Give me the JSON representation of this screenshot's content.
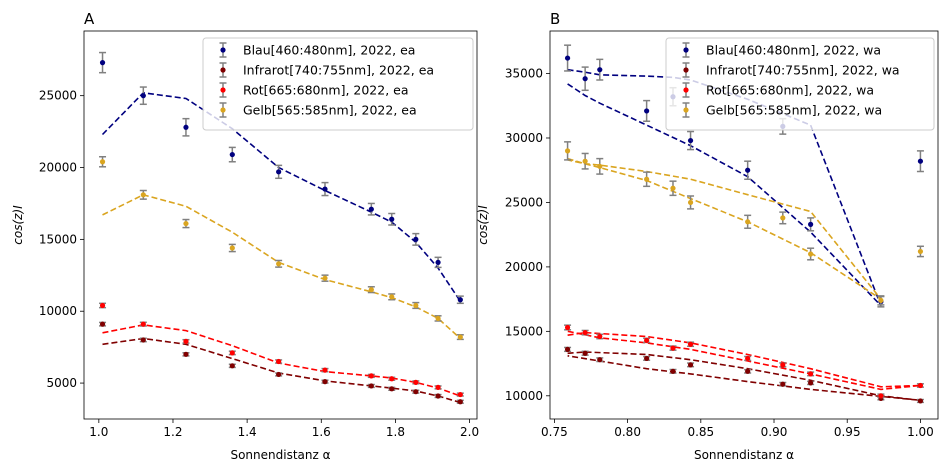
{
  "chart_data": [
    {
      "type": "scatter",
      "title": "A",
      "xlabel": "Sonnendistanz α",
      "ylabel": "cos(z)I",
      "xlim": [
        0.96,
        2.02
      ],
      "ylim": [
        2500,
        29500
      ],
      "xticks": [
        1.0,
        1.2,
        1.4,
        1.6,
        1.8,
        2.0
      ],
      "xtick_labels": [
        "1.0",
        "1.2",
        "1.4",
        "1.6",
        "1.8",
        "2.0"
      ],
      "yticks": [
        5000,
        10000,
        15000,
        20000,
        25000
      ],
      "ytick_labels": [
        "5000",
        "10000",
        "15000",
        "20000",
        "25000"
      ],
      "legend_position": "top-right",
      "grid": false,
      "series": [
        {
          "name": "Blau[460:480nm], 2022, ea",
          "color": "#00007f",
          "points": [
            [
              1.01,
              27300,
              700
            ],
            [
              1.12,
              25000,
              600
            ],
            [
              1.235,
              22800,
              600
            ],
            [
              1.36,
              20900,
              500
            ],
            [
              1.485,
              19700,
              450
            ],
            [
              1.61,
              18500,
              450
            ],
            [
              1.735,
              17100,
              400
            ],
            [
              1.79,
              16400,
              400
            ],
            [
              1.855,
              15000,
              400
            ],
            [
              1.915,
              13400,
              350
            ],
            [
              1.975,
              10800,
              250
            ]
          ],
          "fit": [
            [
              1.01,
              22300
            ],
            [
              1.12,
              25200
            ],
            [
              1.235,
              24800
            ],
            [
              1.36,
              22700
            ],
            [
              1.485,
              20000
            ],
            [
              1.61,
              18400
            ],
            [
              1.735,
              16900
            ],
            [
              1.79,
              16200
            ],
            [
              1.855,
              14800
            ],
            [
              1.915,
              13000
            ],
            [
              1.975,
              10700
            ]
          ]
        },
        {
          "name": "Infrarot[740:755nm], 2022, ea",
          "color": "#800000",
          "points": [
            [
              1.01,
              9100,
              120
            ],
            [
              1.12,
              8000,
              120
            ],
            [
              1.235,
              7000,
              110
            ],
            [
              1.36,
              6200,
              110
            ],
            [
              1.485,
              5600,
              100
            ],
            [
              1.61,
              5100,
              100
            ],
            [
              1.735,
              4800,
              100
            ],
            [
              1.79,
              4600,
              100
            ],
            [
              1.855,
              4400,
              100
            ],
            [
              1.915,
              4100,
              100
            ],
            [
              1.975,
              3700,
              100
            ]
          ],
          "fit": [
            [
              1.01,
              7700
            ],
            [
              1.12,
              8100
            ],
            [
              1.235,
              7700
            ],
            [
              1.36,
              6700
            ],
            [
              1.485,
              5700
            ],
            [
              1.61,
              5150
            ],
            [
              1.735,
              4800
            ],
            [
              1.79,
              4650
            ],
            [
              1.855,
              4450
            ],
            [
              1.915,
              4100
            ],
            [
              1.975,
              3650
            ]
          ]
        },
        {
          "name": "Rot[665:680nm], 2022, ea",
          "color": "#ff0000",
          "points": [
            [
              1.01,
              10400,
              150
            ],
            [
              1.12,
              9100,
              130
            ],
            [
              1.235,
              7900,
              120
            ],
            [
              1.36,
              7100,
              120
            ],
            [
              1.485,
              6500,
              110
            ],
            [
              1.61,
              5900,
              110
            ],
            [
              1.735,
              5500,
              100
            ],
            [
              1.79,
              5300,
              100
            ],
            [
              1.855,
              5050,
              100
            ],
            [
              1.915,
              4700,
              100
            ],
            [
              1.975,
              4200,
              100
            ]
          ],
          "fit": [
            [
              1.01,
              8500
            ],
            [
              1.12,
              9050
            ],
            [
              1.235,
              8650
            ],
            [
              1.36,
              7600
            ],
            [
              1.485,
              6400
            ],
            [
              1.61,
              5800
            ],
            [
              1.735,
              5500
            ],
            [
              1.79,
              5350
            ],
            [
              1.855,
              5050
            ],
            [
              1.915,
              4650
            ],
            [
              1.975,
              4100
            ]
          ]
        },
        {
          "name": "Gelb[565:585nm], 2022, ea",
          "color": "#daa520",
          "points": [
            [
              1.01,
              20400,
              350
            ],
            [
              1.12,
              18100,
              300
            ],
            [
              1.235,
              16100,
              280
            ],
            [
              1.36,
              14400,
              250
            ],
            [
              1.485,
              13300,
              230
            ],
            [
              1.61,
              12300,
              210
            ],
            [
              1.735,
              11500,
              200
            ],
            [
              1.79,
              11000,
              200
            ],
            [
              1.855,
              10400,
              200
            ],
            [
              1.915,
              9500,
              180
            ],
            [
              1.975,
              8200,
              160
            ]
          ],
          "fit": [
            [
              1.01,
              16700
            ],
            [
              1.12,
              18100
            ],
            [
              1.235,
              17300
            ],
            [
              1.36,
              15500
            ],
            [
              1.485,
              13400
            ],
            [
              1.61,
              12200
            ],
            [
              1.735,
              11350
            ],
            [
              1.79,
              10950
            ],
            [
              1.855,
              10300
            ],
            [
              1.915,
              9500
            ],
            [
              1.975,
              8100
            ]
          ]
        }
      ]
    },
    {
      "type": "scatter",
      "title": "B",
      "xlabel": "Sonnendistanz α",
      "ylabel": "cos(z)I",
      "xlim": [
        0.747,
        1.012
      ],
      "ylim": [
        8200,
        38300
      ],
      "xticks": [
        0.75,
        0.8,
        0.85,
        0.9,
        0.95,
        1.0
      ],
      "xtick_labels": [
        "0.75",
        "0.80",
        "0.85",
        "0.90",
        "0.95",
        "1.00"
      ],
      "yticks": [
        10000,
        15000,
        20000,
        25000,
        30000,
        35000
      ],
      "ytick_labels": [
        "10000",
        "15000",
        "20000",
        "25000",
        "30000",
        "35000"
      ],
      "legend_position": "top-right",
      "grid": false,
      "series": [
        {
          "name": "Blau[460:480nm], 2022, wa",
          "color": "#00007f",
          "points": [
            [
              0.759,
              36200,
              1000
            ],
            [
              0.771,
              34600,
              900
            ],
            [
              0.781,
              35300,
              800
            ],
            [
              0.813,
              32100,
              800
            ],
            [
              0.831,
              33200,
              700
            ],
            [
              0.843,
              29800,
              700
            ],
            [
              0.882,
              27500,
              700
            ],
            [
              0.906,
              30900,
              600
            ],
            [
              0.925,
              23300,
              500
            ],
            [
              0.973,
              17300,
              400
            ],
            [
              1.0,
              28200,
              800
            ]
          ],
          "fit": [
            [
              0.759,
              34200
            ],
            [
              0.771,
              33300
            ],
            [
              0.781,
              32700
            ],
            [
              0.813,
              31000
            ],
            [
              0.843,
              29400
            ],
            [
              0.882,
              27000
            ],
            [
              0.925,
              22700
            ],
            [
              0.973,
              17000
            ],
            [
              0.973,
              17000
            ],
            [
              0.925,
              31000
            ],
            [
              0.882,
              33000
            ],
            [
              0.843,
              34500
            ],
            [
              0.831,
              34700
            ],
            [
              0.813,
              34800
            ],
            [
              0.781,
              34900
            ],
            [
              0.771,
              35100
            ],
            [
              0.759,
              35300
            ]
          ]
        },
        {
          "name": "Infrarot[740:755nm], 2022, wa",
          "color": "#800000",
          "points": [
            [
              0.759,
              13600,
              150
            ],
            [
              0.771,
              13300,
              150
            ],
            [
              0.781,
              12800,
              140
            ],
            [
              0.813,
              12900,
              140
            ],
            [
              0.831,
              11900,
              140
            ],
            [
              0.843,
              12400,
              140
            ],
            [
              0.882,
              11900,
              130
            ],
            [
              0.906,
              10900,
              130
            ],
            [
              0.925,
              11000,
              120
            ],
            [
              0.973,
              9800,
              110
            ],
            [
              1.0,
              9600,
              110
            ]
          ],
          "fit": [
            [
              0.759,
              13300
            ],
            [
              0.771,
              13400
            ],
            [
              0.813,
              13200
            ],
            [
              0.843,
              12800
            ],
            [
              0.882,
              12100
            ],
            [
              0.925,
              11200
            ],
            [
              0.973,
              10000
            ],
            [
              1.0,
              9650
            ],
            [
              1.0,
              9650
            ],
            [
              0.973,
              9950
            ],
            [
              0.925,
              10500
            ],
            [
              0.882,
              11100
            ],
            [
              0.843,
              11700
            ],
            [
              0.813,
              12100
            ],
            [
              0.781,
              12700
            ],
            [
              0.759,
              13100
            ]
          ]
        },
        {
          "name": "Rot[665:680nm], 2022, wa",
          "color": "#ff0000",
          "points": [
            [
              0.759,
              15300,
              180
            ],
            [
              0.771,
              14900,
              170
            ],
            [
              0.781,
              14600,
              170
            ],
            [
              0.813,
              14300,
              160
            ],
            [
              0.831,
              13700,
              160
            ],
            [
              0.843,
              14000,
              160
            ],
            [
              0.882,
              12900,
              150
            ],
            [
              0.906,
              12400,
              150
            ],
            [
              0.925,
              11700,
              140
            ],
            [
              0.973,
              10000,
              130
            ],
            [
              1.0,
              10800,
              130
            ]
          ],
          "fit": [
            [
              0.759,
              14700
            ],
            [
              0.771,
              14900
            ],
            [
              0.813,
              14600
            ],
            [
              0.843,
              14100
            ],
            [
              0.882,
              13200
            ],
            [
              0.925,
              12100
            ],
            [
              0.973,
              10700
            ],
            [
              1.0,
              10800
            ],
            [
              1.0,
              10800
            ],
            [
              0.973,
              10500
            ],
            [
              0.925,
              11700
            ],
            [
              0.882,
              12700
            ],
            [
              0.843,
              13600
            ],
            [
              0.813,
              14100
            ],
            [
              0.781,
              14500
            ],
            [
              0.759,
              15000
            ]
          ]
        },
        {
          "name": "Gelb[565:585nm], 2022, wa",
          "color": "#daa520",
          "points": [
            [
              0.759,
              29000,
              700
            ],
            [
              0.771,
              28200,
              600
            ],
            [
              0.781,
              27800,
              600
            ],
            [
              0.813,
              26800,
              550
            ],
            [
              0.831,
              26100,
              550
            ],
            [
              0.843,
              25000,
              500
            ],
            [
              0.882,
              23500,
              500
            ],
            [
              0.906,
              23800,
              450
            ],
            [
              0.925,
              21000,
              450
            ],
            [
              0.973,
              17400,
              350
            ],
            [
              1.0,
              21200,
              400
            ]
          ],
          "fit": [
            [
              0.759,
              28400
            ],
            [
              0.771,
              28000
            ],
            [
              0.781,
              27700
            ],
            [
              0.813,
              26700
            ],
            [
              0.843,
              25300
            ],
            [
              0.882,
              23500
            ],
            [
              0.925,
              21100
            ],
            [
              0.973,
              17500
            ],
            [
              0.973,
              17500
            ],
            [
              0.925,
              24300
            ],
            [
              0.882,
              25600
            ],
            [
              0.843,
              26800
            ],
            [
              0.813,
              27400
            ],
            [
              0.781,
              27900
            ],
            [
              0.771,
              28000
            ],
            [
              0.759,
              28300
            ]
          ]
        }
      ]
    }
  ]
}
